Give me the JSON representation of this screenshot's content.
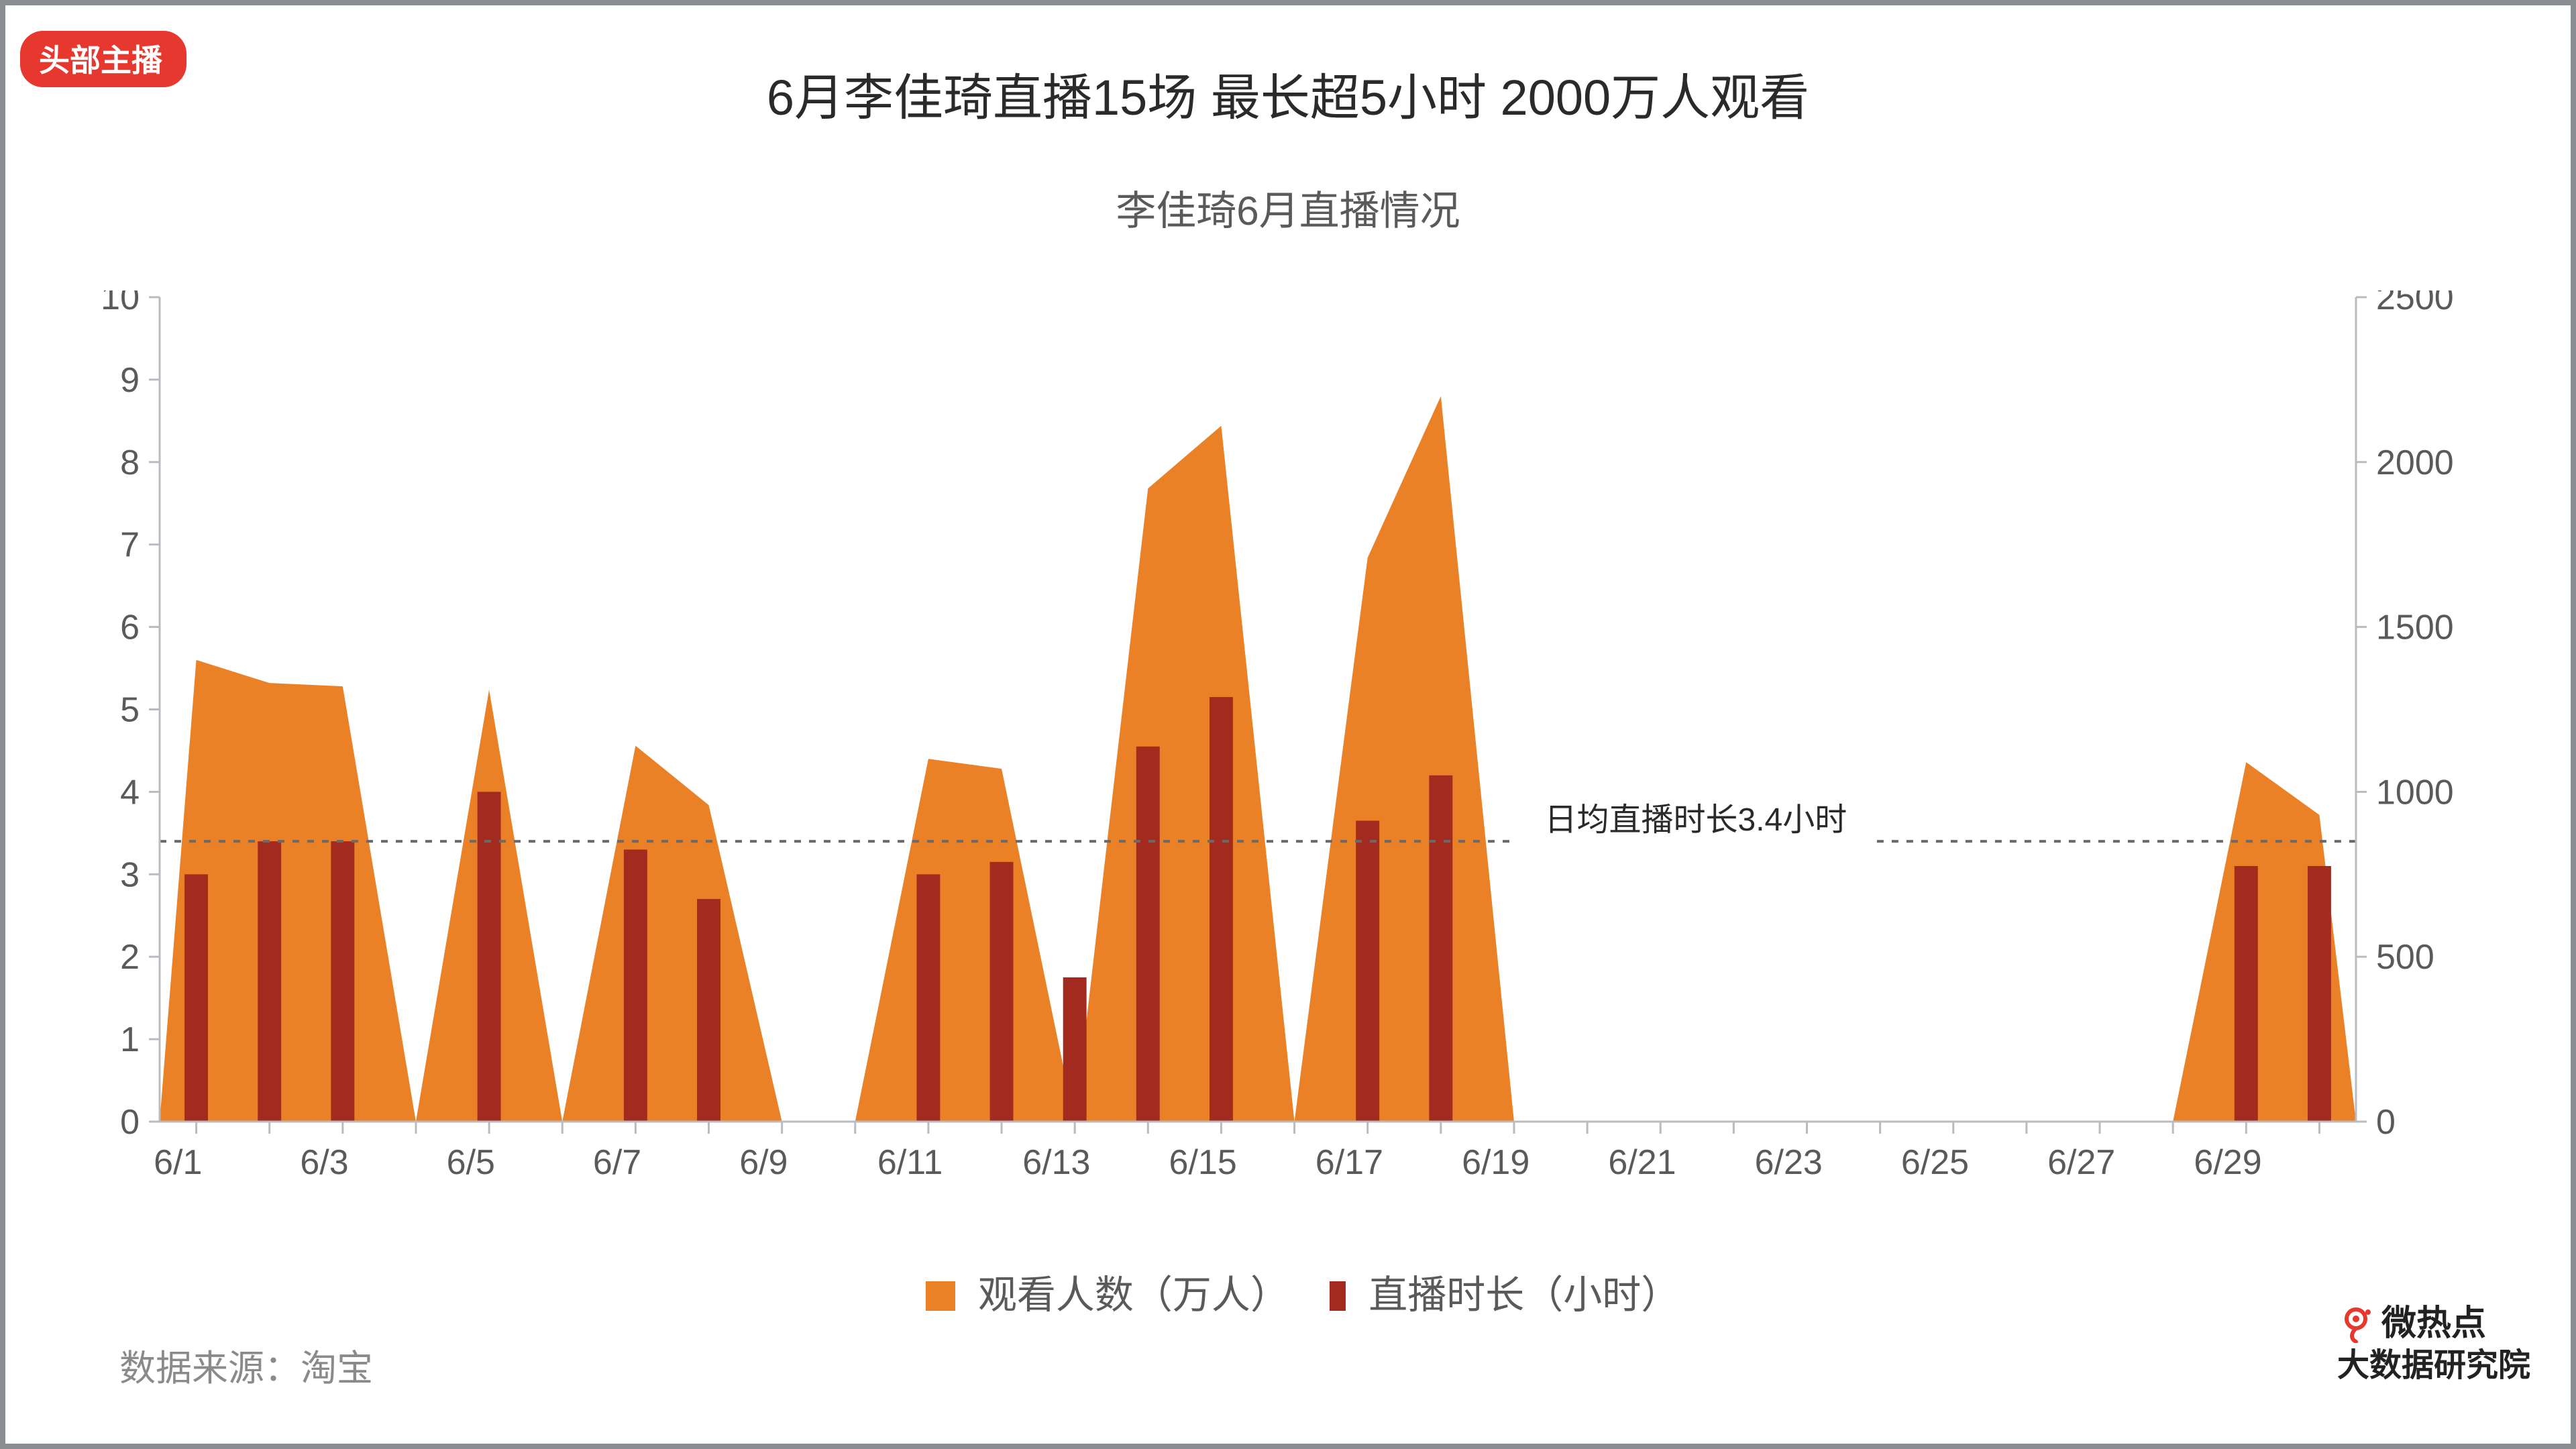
{
  "frame": {
    "border_color": "#8a8e92",
    "border_width": 8,
    "bg": "#ffffff"
  },
  "tag": {
    "text": "头部主播",
    "bg": "#e6382e",
    "fg": "#ffffff",
    "fontsize": 46
  },
  "title": {
    "text": "6月李佳琦直播15场 最长超5小时 2000万人观看",
    "fontsize": 74,
    "color": "#2a2a2a"
  },
  "subtitle": {
    "text": "李佳琦6月直播情况",
    "fontsize": 60,
    "color": "#5a5a5a"
  },
  "source": {
    "text": "数据来源：淘宝",
    "fontsize": 54,
    "color": "#8a8a8a"
  },
  "brand": {
    "eye_color": "#e6382e",
    "line1": "微热点",
    "line2": "大数据研究院",
    "color": "#222222",
    "fontsize1": 52,
    "fontsize2": 48
  },
  "legend": {
    "area": {
      "label": "观看人数（万人）",
      "color": "#eb8126"
    },
    "bar": {
      "label": "直播时长（小时）",
      "color": "#a22a1f"
    },
    "fontsize": 58,
    "text_color": "#5a5a5a"
  },
  "chart": {
    "type": "combo-area-bar",
    "background": "#ffffff",
    "axis_color": "#b8bcc0",
    "axis_width": 3,
    "tick_font_color": "#5a5a5a",
    "tick_fontsize": 52,
    "x": {
      "categories": [
        "6/1",
        "6/2",
        "6/3",
        "6/4",
        "6/5",
        "6/6",
        "6/7",
        "6/8",
        "6/9",
        "6/10",
        "6/11",
        "6/12",
        "6/13",
        "6/14",
        "6/15",
        "6/16",
        "6/17",
        "6/18",
        "6/19",
        "6/20",
        "6/21",
        "6/22",
        "6/23",
        "6/24",
        "6/25",
        "6/26",
        "6/27",
        "6/28",
        "6/29",
        "6/30"
      ],
      "visible_labels": [
        "6/1",
        "6/3",
        "6/5",
        "6/7",
        "6/9",
        "6/11",
        "6/13",
        "6/15",
        "6/17",
        "6/19",
        "6/21",
        "6/23",
        "6/25",
        "6/27",
        "6/29"
      ],
      "tick_len": 18
    },
    "y_left": {
      "min": 0,
      "max": 10,
      "step": 1
    },
    "y_right": {
      "min": 0,
      "max": 2500,
      "step": 500
    },
    "area_series": {
      "name": "观看人数（万人）",
      "color": "#eb8126",
      "opacity": 1.0,
      "values": [
        1400,
        1330,
        1320,
        0,
        1310,
        0,
        1140,
        960,
        0,
        0,
        1100,
        1070,
        0,
        1920,
        2110,
        0,
        1710,
        2200,
        0,
        0,
        0,
        0,
        0,
        0,
        0,
        0,
        0,
        0,
        1090,
        930
      ]
    },
    "bar_series": {
      "name": "直播时长（小时）",
      "color": "#a22a1f",
      "width_ratio": 0.32,
      "values": [
        3.0,
        3.4,
        3.4,
        null,
        4.0,
        null,
        3.3,
        2.7,
        null,
        null,
        3.0,
        3.15,
        1.75,
        4.55,
        5.15,
        null,
        3.65,
        4.2,
        null,
        null,
        null,
        null,
        null,
        null,
        null,
        null,
        null,
        null,
        3.1,
        3.1
      ]
    },
    "avg_line": {
      "value_left": 3.4,
      "label": "日均直播时长3.4小时",
      "color": "#6a6a6a",
      "dash": "10 12",
      "width": 4,
      "x_start_category": "6/1",
      "x_end_category": "6/30",
      "label_fontsize": 48
    }
  }
}
